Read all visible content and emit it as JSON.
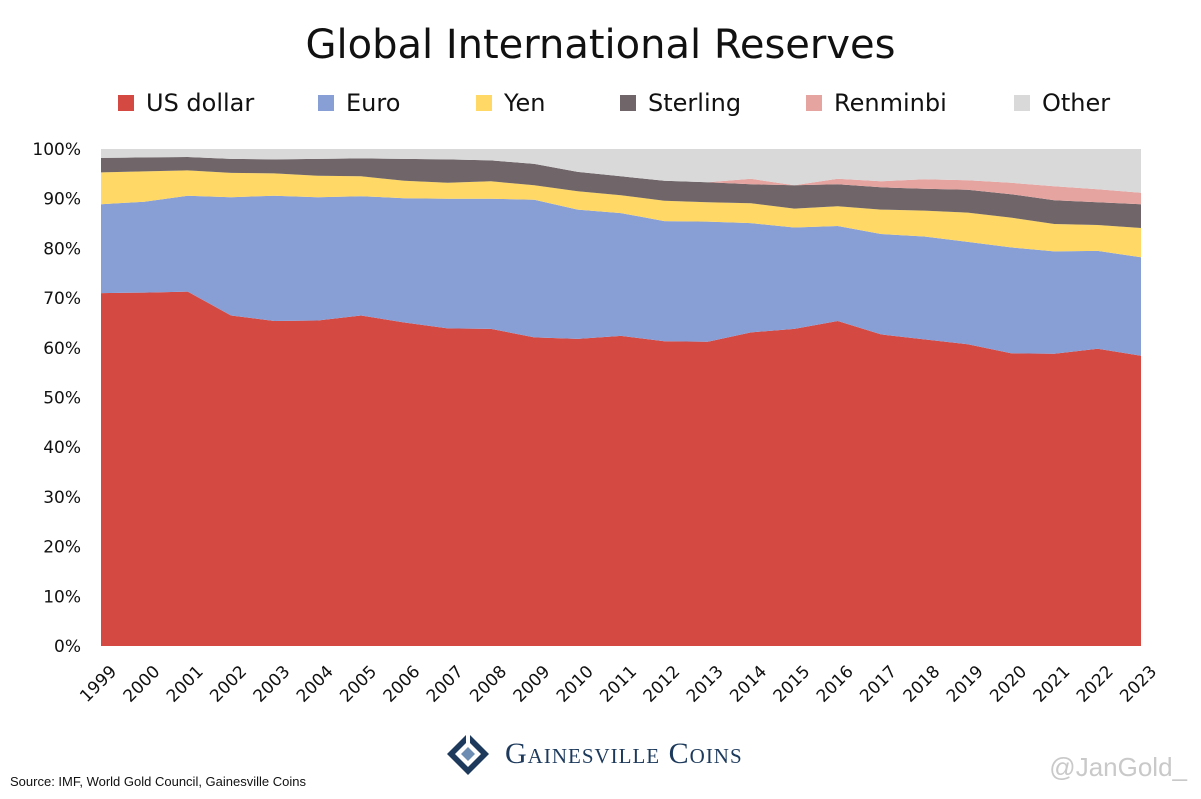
{
  "chart_data": {
    "type": "area",
    "stacked": true,
    "percent": true,
    "title": "Global International Reserves",
    "x": [
      "1999",
      "2000",
      "2001",
      "2002",
      "2003",
      "2004",
      "2005",
      "2006",
      "2007",
      "2008",
      "2009",
      "2010",
      "2011",
      "2012",
      "2013",
      "2014",
      "2015",
      "2016",
      "2017",
      "2018",
      "2019",
      "2020",
      "2021",
      "2022",
      "2023"
    ],
    "ylim": [
      0,
      100
    ],
    "yticks": [
      "0%",
      "10%",
      "20%",
      "30%",
      "40%",
      "50%",
      "60%",
      "70%",
      "80%",
      "90%",
      "100%"
    ],
    "legend_position": "top",
    "grid": false,
    "series": [
      {
        "name": "US dollar",
        "color": "#d44a43",
        "values": [
          71.0,
          71.1,
          71.3,
          66.5,
          65.4,
          65.5,
          66.5,
          65.1,
          63.9,
          63.8,
          62.1,
          61.8,
          62.4,
          61.3,
          61.2,
          63.1,
          63.8,
          65.4,
          62.7,
          61.7,
          60.7,
          58.9,
          58.8,
          59.8,
          58.4
        ]
      },
      {
        "name": "Euro",
        "color": "#889fd6",
        "values": [
          17.9,
          18.3,
          19.3,
          23.8,
          25.2,
          24.8,
          24.0,
          25.0,
          26.1,
          26.2,
          27.7,
          26.0,
          24.7,
          24.2,
          24.2,
          22.0,
          20.4,
          19.1,
          20.2,
          20.7,
          20.6,
          21.3,
          20.6,
          19.7,
          19.8
        ]
      },
      {
        "name": "Yen",
        "color": "#ffd866",
        "values": [
          6.4,
          6.1,
          5.1,
          4.9,
          4.5,
          4.3,
          4.0,
          3.5,
          3.2,
          3.5,
          2.9,
          3.7,
          3.6,
          4.1,
          3.9,
          4.0,
          3.8,
          4.0,
          4.9,
          5.2,
          5.9,
          6.0,
          5.5,
          5.2,
          5.9
        ]
      },
      {
        "name": "Sterling",
        "color": "#706669",
        "values": [
          2.9,
          2.8,
          2.7,
          2.8,
          2.8,
          3.4,
          3.6,
          4.4,
          4.7,
          4.2,
          4.3,
          3.9,
          3.8,
          4.0,
          4.0,
          3.8,
          4.7,
          4.4,
          4.5,
          4.4,
          4.6,
          4.7,
          4.8,
          4.6,
          4.8
        ]
      },
      {
        "name": "Renminbi",
        "color": "#e6a4a0",
        "values": [
          0,
          0,
          0,
          0,
          0,
          0,
          0,
          0,
          0,
          0,
          0,
          0,
          0,
          0,
          0,
          1.1,
          0,
          1.1,
          1.2,
          1.9,
          1.9,
          2.3,
          2.8,
          2.6,
          2.3
        ]
      },
      {
        "name": "Other",
        "color": "#d9d9d9",
        "values": [
          1.8,
          1.7,
          1.6,
          2.0,
          2.1,
          2.0,
          1.9,
          2.0,
          2.1,
          2.3,
          3.0,
          4.6,
          5.5,
          6.4,
          6.7,
          6.0,
          7.3,
          6.0,
          6.5,
          6.1,
          6.3,
          6.8,
          7.5,
          8.1,
          8.8
        ]
      }
    ]
  },
  "source_text": "Source: IMF, World Gold Council, Gainesville Coins",
  "brand": {
    "name": "Gainesville Coins",
    "icon": "gainesville-logo-icon"
  },
  "watermark": "@JanGold_"
}
